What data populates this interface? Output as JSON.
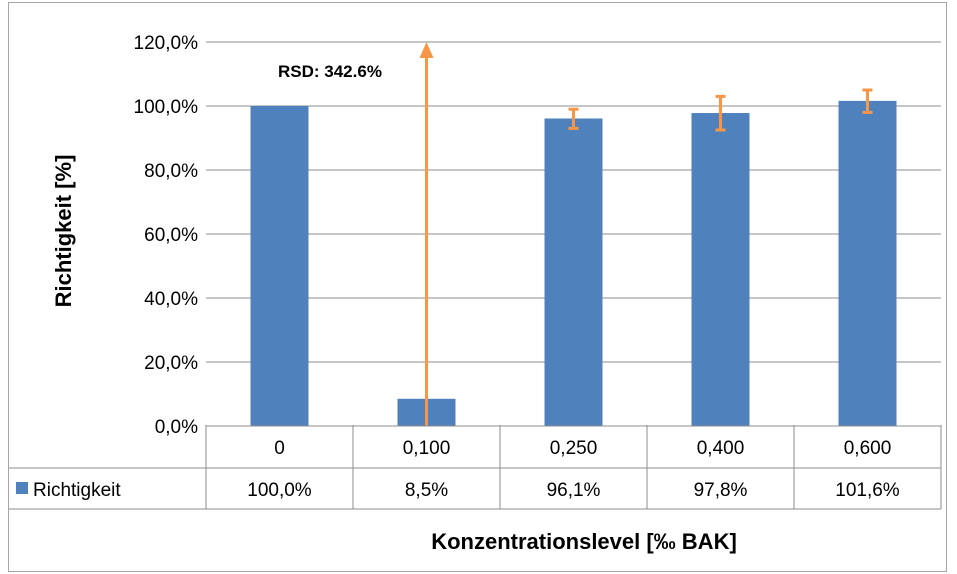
{
  "chart_data": {
    "type": "bar",
    "ylabel": "Richtigkeit [%]",
    "xlabel": "Konzentrationslevel [‰ BAK]",
    "ylim": [
      0,
      120
    ],
    "yticks": [
      "0,0%",
      "20,0%",
      "40,0%",
      "60,0%",
      "80,0%",
      "100,0%",
      "120,0%"
    ],
    "categories": [
      "0",
      "0,100",
      "0,250",
      "0,400",
      "0,600"
    ],
    "series": [
      {
        "name": "Richtigkeit",
        "values": [
          100.0,
          8.5,
          96.1,
          97.8,
          101.6
        ],
        "value_labels": [
          "100,0%",
          "8,5%",
          "96,1%",
          "97,8%",
          "101,6%"
        ],
        "error_low": [
          null,
          null,
          93.0,
          92.5,
          98.0
        ],
        "error_high": [
          null,
          null,
          99.0,
          103.0,
          105.0
        ]
      }
    ],
    "annotation": {
      "text": "RSD: 342.6%",
      "category": "0,100",
      "arrow_from": 0,
      "arrow_to": 120
    },
    "grid": true,
    "legend": "data-table",
    "colors": {
      "bar": "#4f81bd",
      "error": "#f79646",
      "grid": "#8c8c8c",
      "table_border": "#8c8c8c"
    }
  }
}
